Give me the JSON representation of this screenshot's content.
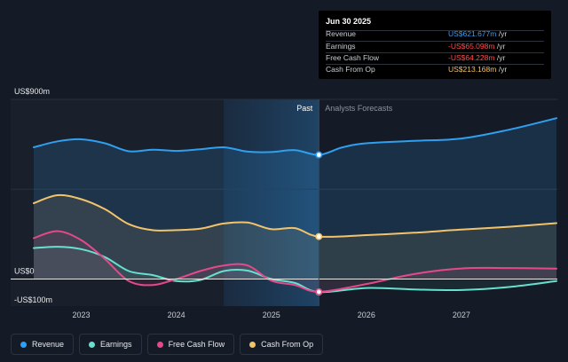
{
  "colors": {
    "background": "#151b26",
    "revenue": "#2f9ff0",
    "earnings": "#68e0d0",
    "free_cash_flow": "#e6498a",
    "cash_from_op": "#f2c36b",
    "past_band": "#1d3a5a"
  },
  "tooltip": {
    "date": "Jun 30 2025",
    "rows": [
      {
        "label": "Revenue",
        "value": "US$621.677m",
        "unit": "/yr",
        "color": "#3d9df0"
      },
      {
        "label": "Earnings",
        "value": "-US$65.098m",
        "unit": "/yr",
        "color": "#ff4d4d"
      },
      {
        "label": "Free Cash Flow",
        "value": "-US$64.228m",
        "unit": "/yr",
        "color": "#ff4d4d"
      },
      {
        "label": "Cash From Op",
        "value": "US$213.168m",
        "unit": "/yr",
        "color": "#f2c36b"
      }
    ]
  },
  "legend": [
    {
      "label": "Revenue",
      "color": "#2f9ff0"
    },
    {
      "label": "Earnings",
      "color": "#68e0d0"
    },
    {
      "label": "Free Cash Flow",
      "color": "#e6498a"
    },
    {
      "label": "Cash From Op",
      "color": "#f2c36b"
    }
  ],
  "chart_data": {
    "type": "line",
    "title": "",
    "xlabel": "",
    "ylabel": "",
    "ylim": [
      -100,
      900
    ],
    "y_tick_labels": [
      {
        "value": 900,
        "label": "US$900m"
      },
      {
        "value": 0,
        "label": "US$0"
      },
      {
        "value": -100,
        "label": "-US$100m"
      }
    ],
    "xlim": [
      2022.5,
      2028.0
    ],
    "x_tick_labels": [
      {
        "value": 2023.0,
        "label": "2023"
      },
      {
        "value": 2024.0,
        "label": "2024"
      },
      {
        "value": 2025.0,
        "label": "2025"
      },
      {
        "value": 2026.0,
        "label": "2026"
      },
      {
        "value": 2027.0,
        "label": "2027"
      }
    ],
    "past_label": "Past",
    "forecast_label": "Analysts Forecasts",
    "divider_x": 2025.5,
    "highlight_start_x": 2024.5,
    "series": [
      {
        "name": "Revenue",
        "points": [
          [
            2022.5,
            660
          ],
          [
            2022.75,
            690
          ],
          [
            2023.0,
            700
          ],
          [
            2023.25,
            680
          ],
          [
            2023.5,
            640
          ],
          [
            2023.75,
            648
          ],
          [
            2024.0,
            642
          ],
          [
            2024.25,
            650
          ],
          [
            2024.5,
            660
          ],
          [
            2024.75,
            638
          ],
          [
            2025.0,
            636
          ],
          [
            2025.25,
            646
          ],
          [
            2025.5,
            622
          ],
          [
            2025.75,
            660
          ],
          [
            2026.0,
            680
          ],
          [
            2026.5,
            692
          ],
          [
            2027.0,
            704
          ],
          [
            2027.5,
            748
          ],
          [
            2028.0,
            806
          ]
        ]
      },
      {
        "name": "Earnings",
        "points": [
          [
            2022.5,
            155
          ],
          [
            2022.75,
            162
          ],
          [
            2023.0,
            150
          ],
          [
            2023.25,
            110
          ],
          [
            2023.5,
            40
          ],
          [
            2023.75,
            20
          ],
          [
            2024.0,
            -10
          ],
          [
            2024.25,
            -5
          ],
          [
            2024.5,
            40
          ],
          [
            2024.75,
            42
          ],
          [
            2025.0,
            0
          ],
          [
            2025.25,
            -20
          ],
          [
            2025.5,
            -65
          ],
          [
            2026.0,
            -45
          ],
          [
            2026.5,
            -52
          ],
          [
            2027.0,
            -55
          ],
          [
            2027.5,
            -40
          ],
          [
            2028.0,
            -10
          ]
        ]
      },
      {
        "name": "Free Cash Flow",
        "points": [
          [
            2022.5,
            205
          ],
          [
            2022.75,
            240
          ],
          [
            2023.0,
            195
          ],
          [
            2023.25,
            100
          ],
          [
            2023.5,
            -10
          ],
          [
            2023.75,
            -30
          ],
          [
            2024.0,
            0
          ],
          [
            2024.25,
            40
          ],
          [
            2024.5,
            68
          ],
          [
            2024.75,
            68
          ],
          [
            2025.0,
            -8
          ],
          [
            2025.25,
            -30
          ],
          [
            2025.5,
            -64
          ],
          [
            2026.0,
            -25
          ],
          [
            2026.5,
            25
          ],
          [
            2027.0,
            53
          ],
          [
            2027.5,
            55
          ],
          [
            2028.0,
            52
          ]
        ]
      },
      {
        "name": "Cash From Op",
        "points": [
          [
            2022.5,
            380
          ],
          [
            2022.75,
            420
          ],
          [
            2023.0,
            400
          ],
          [
            2023.25,
            350
          ],
          [
            2023.5,
            275
          ],
          [
            2023.75,
            245
          ],
          [
            2024.0,
            245
          ],
          [
            2024.25,
            252
          ],
          [
            2024.5,
            278
          ],
          [
            2024.75,
            283
          ],
          [
            2025.0,
            250
          ],
          [
            2025.25,
            255
          ],
          [
            2025.5,
            213
          ],
          [
            2026.0,
            220
          ],
          [
            2026.5,
            232
          ],
          [
            2027.0,
            248
          ],
          [
            2027.5,
            262
          ],
          [
            2028.0,
            280
          ]
        ]
      }
    ]
  }
}
